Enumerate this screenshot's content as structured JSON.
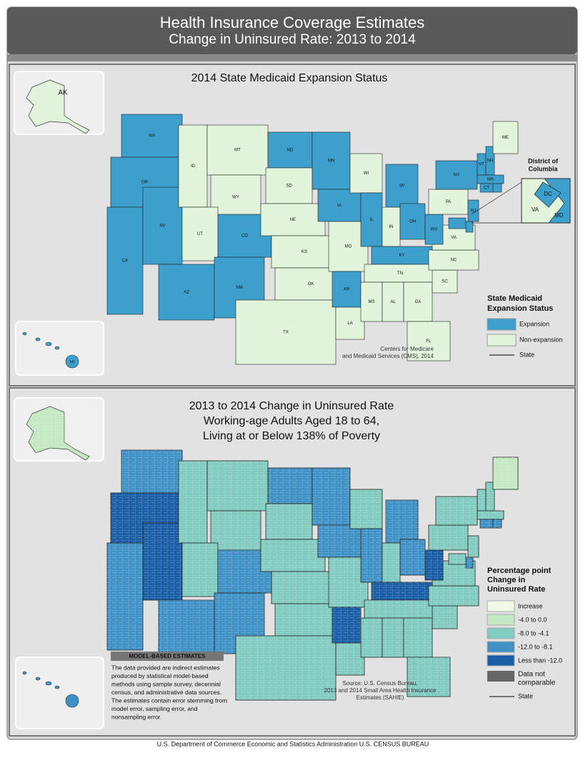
{
  "header": {
    "title": "Health Insurance Coverage Estimates",
    "subtitle": "Change in Uninsured Rate: 2013 to 2014"
  },
  "map1": {
    "title": "2014 State Medicaid Expansion Status",
    "states": [
      {
        "abbr": "WA",
        "expansion": true
      },
      {
        "abbr": "OR",
        "expansion": true
      },
      {
        "abbr": "CA",
        "expansion": true
      },
      {
        "abbr": "NV",
        "expansion": true
      },
      {
        "abbr": "ID",
        "expansion": false
      },
      {
        "abbr": "MT",
        "expansion": false
      },
      {
        "abbr": "WY",
        "expansion": false
      },
      {
        "abbr": "UT",
        "expansion": false
      },
      {
        "abbr": "CO",
        "expansion": true
      },
      {
        "abbr": "AZ",
        "expansion": true
      },
      {
        "abbr": "NM",
        "expansion": true
      },
      {
        "abbr": "ND",
        "expansion": true
      },
      {
        "abbr": "SD",
        "expansion": false
      },
      {
        "abbr": "NE",
        "expansion": false
      },
      {
        "abbr": "KS",
        "expansion": false
      },
      {
        "abbr": "OK",
        "expansion": false
      },
      {
        "abbr": "TX",
        "expansion": false
      },
      {
        "abbr": "MN",
        "expansion": true
      },
      {
        "abbr": "IA",
        "expansion": true
      },
      {
        "abbr": "MO",
        "expansion": false
      },
      {
        "abbr": "AR",
        "expansion": true
      },
      {
        "abbr": "LA",
        "expansion": false
      },
      {
        "abbr": "WI",
        "expansion": false
      },
      {
        "abbr": "IL",
        "expansion": true
      },
      {
        "abbr": "MI",
        "expansion": true
      },
      {
        "abbr": "IN",
        "expansion": false
      },
      {
        "abbr": "OH",
        "expansion": true
      },
      {
        "abbr": "KY",
        "expansion": true
      },
      {
        "abbr": "TN",
        "expansion": false
      },
      {
        "abbr": "MS",
        "expansion": false
      },
      {
        "abbr": "AL",
        "expansion": false
      },
      {
        "abbr": "GA",
        "expansion": false
      },
      {
        "abbr": "FL",
        "expansion": false
      },
      {
        "abbr": "SC",
        "expansion": false
      },
      {
        "abbr": "NC",
        "expansion": false
      },
      {
        "abbr": "VA",
        "expansion": false
      },
      {
        "abbr": "WV",
        "expansion": true
      },
      {
        "abbr": "PA",
        "expansion": false
      },
      {
        "abbr": "NY",
        "expansion": true
      },
      {
        "abbr": "VT",
        "expansion": true
      },
      {
        "abbr": "NH",
        "expansion": true
      },
      {
        "abbr": "ME",
        "expansion": false
      },
      {
        "abbr": "MA",
        "expansion": true
      },
      {
        "abbr": "CT",
        "expansion": true
      },
      {
        "abbr": null,
        "expansion": true
      },
      {
        "abbr": "NJ",
        "expansion": true
      },
      {
        "abbr": null,
        "expansion": true
      },
      {
        "abbr": null,
        "expansion": true
      }
    ],
    "alaska": {
      "abbr": "AK",
      "expansion": false
    },
    "hawaii": {
      "abbr": "HI",
      "expansion": true
    },
    "dc_inset": {
      "title_lines": [
        "District of",
        "Columbia"
      ],
      "dc": "DC",
      "va": "VA",
      "md": "MD"
    },
    "legend": {
      "title_lines": [
        "State Medicaid",
        "Expansion Status"
      ],
      "items": [
        {
          "label": "Expansion",
          "color": "#3d9fcc"
        },
        {
          "label": "Non-expansion",
          "color": "#e3f4dc"
        }
      ],
      "state_line": "State"
    },
    "source_lines": [
      "Centers for Medicare",
      "and Medicaid Services (CMS), 2014"
    ]
  },
  "map2": {
    "title_lines": [
      "2013 to 2014 Change in Uninsured Rate",
      "Working-age Adults Aged 18 to 64,",
      "Living at or Below 138% of Poverty"
    ],
    "classes": [
      3,
      4,
      3,
      4,
      2,
      2,
      2,
      2,
      3,
      3,
      3,
      3,
      2,
      2,
      2,
      2,
      2,
      3,
      3,
      2,
      4,
      2,
      2,
      3,
      3,
      2,
      3,
      4,
      2,
      2,
      2,
      2,
      2,
      2,
      2,
      2,
      4,
      2,
      2,
      2,
      2,
      1,
      2,
      3,
      3,
      2,
      3,
      2
    ],
    "alaska_class": 1,
    "hawaii_class": 3,
    "legend": {
      "title_lines": [
        "Percentage point",
        "Change in",
        "Uninsured Rate"
      ],
      "items": [
        {
          "label": "Increase",
          "color": "#f1f9e9"
        },
        {
          "label": "-4.0 to 0.0",
          "color": "#c4e8c1"
        },
        {
          "label": "-8.0 to -4.1",
          "color": "#82cbc0"
        },
        {
          "label": "-12.0 to -8.1",
          "color": "#3f91c6"
        },
        {
          "label": "Less than -12.0",
          "color": "#1a5ea6"
        }
      ],
      "not_comparable": {
        "label_lines": [
          "Data not",
          "comparable"
        ],
        "color": "#666666"
      },
      "state_line": "State"
    },
    "model_box": {
      "heading": "MODEL-BASED ESTIMATES",
      "lines": [
        "The data provided are indirect estimates",
        "produced by statistical model-based",
        "methods using sample survey, decennial",
        "census, and administrative data sources.",
        "The estimates contain error stemming from",
        "model error, sampling error, and",
        "nonsampling error."
      ]
    },
    "source_lines": [
      "Source: U.S. Census Bureau,",
      "2013 and 2014 Small Area Health Insurance",
      "Estimates (SAHIE)"
    ]
  },
  "footer": "U.S. Department of Commerce Economic and Statistics Administration U.S. CENSUS BUREAU"
}
